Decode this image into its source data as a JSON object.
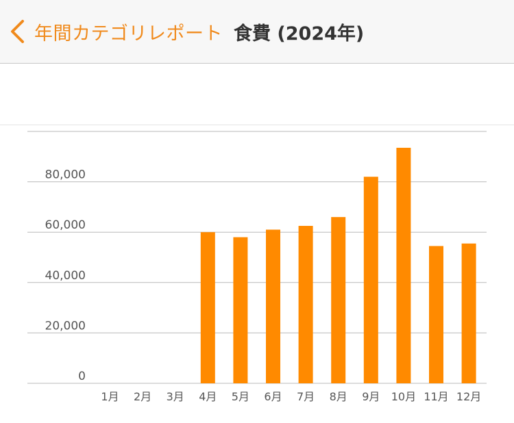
{
  "header": {
    "back_label": "年間カテゴリレポート",
    "title": "食費 (2024年)"
  },
  "colors": {
    "accent": "#f08a1c",
    "bar": "#ff8a00",
    "grid": "#b9b9b9"
  },
  "chart_data": {
    "type": "bar",
    "categories": [
      "1月",
      "2月",
      "3月",
      "4月",
      "5月",
      "6月",
      "7月",
      "8月",
      "9月",
      "10月",
      "11月",
      "12月"
    ],
    "values": [
      0,
      0,
      0,
      60000,
      58000,
      61000,
      62500,
      66000,
      82000,
      93500,
      54500,
      55500
    ],
    "ylim": [
      0,
      100000
    ],
    "yticks": [
      0,
      20000,
      40000,
      60000,
      80000,
      100000
    ],
    "ytick_labels": [
      "0",
      "20,000",
      "40,000",
      "60,000",
      "80,000",
      ""
    ],
    "grid": true
  }
}
